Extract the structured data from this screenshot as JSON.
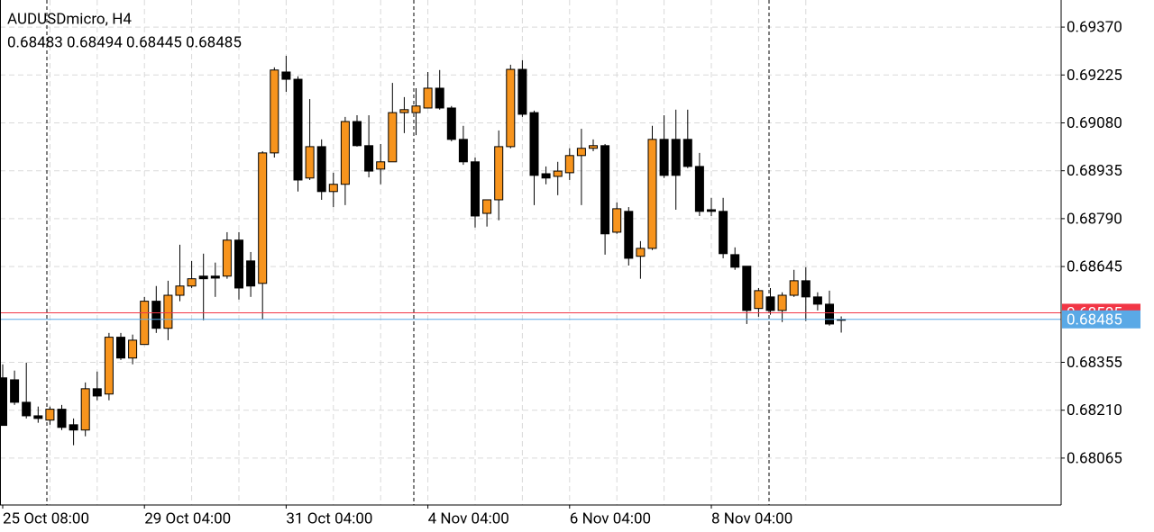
{
  "chart_data": {
    "type": "candlestick",
    "title": "AUDUSDmicro, H4",
    "subtitle": "0.68483 0.68494 0.68445 0.68485",
    "up_color": "#f7941d",
    "down_color": "#000000",
    "grid": true,
    "categories": [
      "25 Oct 08:00",
      null,
      null,
      null,
      null,
      null,
      null,
      null,
      null,
      null,
      null,
      null,
      "29 Oct 04:00",
      null,
      null,
      null,
      null,
      null,
      null,
      null,
      null,
      null,
      null,
      null,
      "31 Oct 04:00",
      null,
      null,
      null,
      null,
      null,
      null,
      null,
      null,
      null,
      null,
      null,
      "4 Nov 04:00",
      null,
      null,
      null,
      null,
      null,
      null,
      null,
      null,
      null,
      null,
      null,
      "6 Nov 04:00",
      null,
      null,
      null,
      null,
      null,
      null,
      null,
      null,
      null,
      null,
      null,
      "8 Nov 04:00",
      null,
      null,
      null,
      null,
      null,
      null,
      null,
      null,
      null,
      null,
      null
    ],
    "open": [
      0.68308,
      0.68302,
      0.68234,
      0.68193,
      0.6818,
      0.68213,
      0.68166,
      0.6815,
      0.68275,
      0.68259,
      0.68431,
      0.68368,
      0.68409,
      0.6854,
      0.68458,
      0.68558,
      0.68586,
      0.68616,
      0.68616,
      0.68616,
      0.68725,
      0.68662,
      0.68594,
      0.68989,
      0.69234,
      0.69212,
      0.68913,
      0.69008,
      0.68872,
      0.68894,
      0.69084,
      0.69011,
      0.6894,
      0.68962,
      0.69111,
      0.69111,
      0.69125,
      0.69185,
      0.69125,
      0.6903,
      0.68962,
      0.68806,
      0.68847,
      0.69008,
      0.69242,
      0.69111,
      0.68926,
      0.68918,
      0.68929,
      0.68981,
      0.69003,
      0.69011,
      0.68749,
      0.68812,
      0.68676,
      0.687,
      0.6903,
      0.6903,
      0.6903,
      0.68948,
      0.68817,
      0.68812,
      0.68681,
      0.68646,
      0.68518,
      0.68553,
      0.68512,
      0.68558,
      0.68602,
      0.68553,
      0.68531,
      0.68483
    ],
    "high": [
      0.68349,
      0.6833,
      0.68354,
      0.68221,
      0.68221,
      0.68226,
      0.68185,
      0.68294,
      0.68327,
      0.68444,
      0.68444,
      0.68439,
      0.68553,
      0.68586,
      0.68602,
      0.68711,
      0.68662,
      0.68684,
      0.68657,
      0.68749,
      0.68749,
      0.68689,
      0.68994,
      0.69248,
      0.69283,
      0.69221,
      0.69152,
      0.6903,
      0.68929,
      0.69098,
      0.69103,
      0.69103,
      0.69016,
      0.69201,
      0.69158,
      0.69185,
      0.69234,
      0.6924,
      0.69131,
      0.69071,
      0.68975,
      0.68847,
      0.69057,
      0.69256,
      0.6927,
      0.69117,
      0.68948,
      0.68962,
      0.69003,
      0.69062,
      0.6903,
      0.69016,
      0.68839,
      0.68825,
      0.68722,
      0.69071,
      0.69103,
      0.6912,
      0.6912,
      0.68989,
      0.68853,
      0.68853,
      0.68703,
      0.68646,
      0.6858,
      0.6858,
      0.68567,
      0.68635,
      0.68643,
      0.68567,
      0.68572,
      0.68494
    ],
    "low": [
      0.68164,
      0.68226,
      0.68185,
      0.68172,
      0.68166,
      0.6815,
      0.68104,
      0.68131,
      0.6824,
      0.6824,
      0.68362,
      0.68349,
      0.68409,
      0.68444,
      0.68422,
      0.6854,
      0.6858,
      0.68482,
      0.68553,
      0.68608,
      0.68545,
      0.68553,
      0.68485,
      0.68975,
      0.69174,
      0.68872,
      0.68907,
      0.68847,
      0.68825,
      0.68831,
      0.69008,
      0.68915,
      0.68894,
      0.68962,
      0.69049,
      0.69043,
      0.69125,
      0.6912,
      0.69024,
      0.68953,
      0.68763,
      0.68766,
      0.68785,
      0.69003,
      0.69098,
      0.68831,
      0.68894,
      0.68861,
      0.68907,
      0.68831,
      0.68994,
      0.68681,
      0.68744,
      0.68648,
      0.68608,
      0.68695,
      0.68913,
      0.68817,
      0.68943,
      0.68798,
      0.68798,
      0.6867,
      0.68635,
      0.68471,
      0.68493,
      0.68499,
      0.68477,
      0.68553,
      0.6848,
      0.68512,
      0.68466,
      0.68445
    ],
    "close": [
      0.68164,
      0.68234,
      0.68193,
      0.68185,
      0.68213,
      0.68158,
      0.6815,
      0.68275,
      0.68253,
      0.68431,
      0.68368,
      0.68422,
      0.6854,
      0.68458,
      0.68558,
      0.68586,
      0.68608,
      0.68608,
      0.6861,
      0.68725,
      0.6858,
      0.68586,
      0.68989,
      0.6924,
      0.69212,
      0.68907,
      0.69008,
      0.68872,
      0.68894,
      0.69084,
      0.69011,
      0.68934,
      0.68962,
      0.69111,
      0.6912,
      0.69131,
      0.69185,
      0.69125,
      0.6903,
      0.68962,
      0.68798,
      0.68847,
      0.69008,
      0.69242,
      0.69106,
      0.68921,
      0.68913,
      0.68934,
      0.68981,
      0.69003,
      0.69011,
      0.68744,
      0.6882,
      0.6867,
      0.687,
      0.6903,
      0.68921,
      0.68921,
      0.68948,
      0.68812,
      0.68812,
      0.68684,
      0.68643,
      0.68512,
      0.68572,
      0.68512,
      0.68558,
      0.68602,
      0.68553,
      0.68531,
      0.68471,
      0.68485
    ],
    "ylim": [
      0.67923,
      0.69452
    ],
    "yticks": [
      {
        "value": 0.6937,
        "label": "0.69370"
      },
      0.69225,
      {
        "value": 0.6908,
        "label": "0.69080"
      },
      0.68935,
      {
        "value": 0.6879,
        "label": "0.68790"
      },
      0.68645,
      0.68355,
      {
        "value": 0.6821,
        "label": "0.68210"
      },
      0.68065
    ],
    "ask_line": {
      "value": 0.68505,
      "color": "#f23645"
    },
    "bid_line": {
      "value": 0.68485,
      "color": "#5aa9e6"
    }
  }
}
